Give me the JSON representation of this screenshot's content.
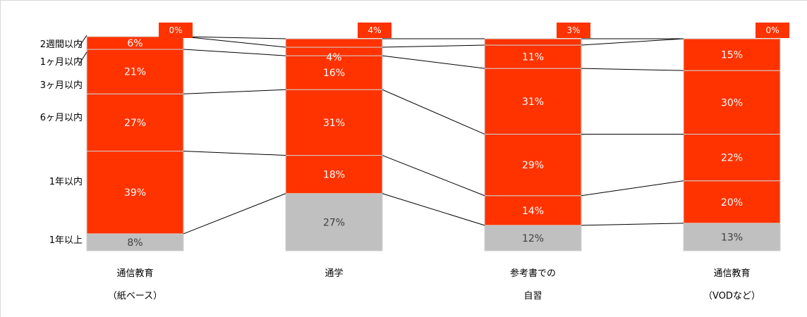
{
  "chart_data": {
    "type": "bar",
    "stacked": true,
    "percent": true,
    "categories": [
      [
        "通信教育",
        "（紙ベース）"
      ],
      [
        "通学"
      ],
      [
        "参考書での",
        "自習"
      ],
      [
        "通信教育",
        "（VODなど）"
      ]
    ],
    "series": [
      {
        "name": "1年以上",
        "color": "#c0c0c0",
        "values": [
          8,
          27,
          12,
          13
        ]
      },
      {
        "name": "1年以内",
        "color": "#ff3300",
        "values": [
          39,
          18,
          14,
          20
        ]
      },
      {
        "name": "6ヶ月以内",
        "color": "#ff3300",
        "values": [
          27,
          31,
          29,
          22
        ]
      },
      {
        "name": "3ヶ月以内",
        "color": "#ff3300",
        "values": [
          21,
          16,
          31,
          30
        ]
      },
      {
        "name": "1ヶ月以内",
        "color": "#ff3300",
        "values": [
          6,
          4,
          11,
          15
        ]
      },
      {
        "name": "2週間以内",
        "color": "#ff3300",
        "values": [
          0,
          4,
          3,
          0
        ]
      }
    ],
    "ylim": [
      0,
      101
    ],
    "grid": false,
    "legend": "left"
  }
}
